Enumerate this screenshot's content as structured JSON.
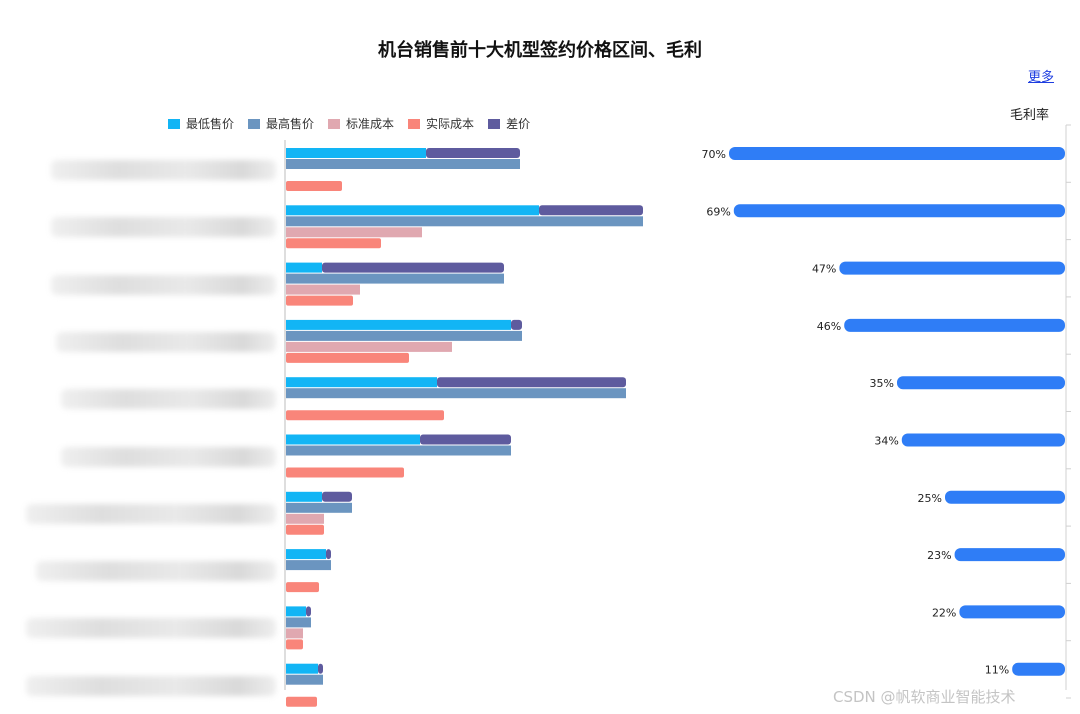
{
  "page": {
    "title": "机台销售前十大机型签约价格区间、毛利",
    "more_link": "更多",
    "watermark": "CSDN @帆软商业智能技术"
  },
  "colors": {
    "min_price": "#12b5f5",
    "max_price": "#6b95c0",
    "standard_cost": "#e0a8b0",
    "actual_cost": "#f9857a",
    "diff": "#5e5b9e",
    "margin_bar": "#2f7df6"
  },
  "chart_data": [
    {
      "type": "bar",
      "orientation": "horizontal",
      "stacked_pair": [
        "最低售价",
        "差价"
      ],
      "legend": [
        "最低售价",
        "最高售价",
        "标准成本",
        "实际成本",
        "差价"
      ],
      "legend_position": "top",
      "category_labels_visible": false,
      "series": [
        {
          "name": "最低售价",
          "values": [
            140,
            253,
            36,
            225,
            151,
            134,
            36,
            40,
            20,
            32
          ]
        },
        {
          "name": "差价",
          "values": [
            94,
            104,
            182,
            11,
            189,
            91,
            30,
            5,
            5,
            5
          ]
        },
        {
          "name": "最高售价",
          "values": [
            234,
            357,
            218,
            236,
            340,
            225,
            66,
            45,
            25,
            37
          ]
        },
        {
          "name": "标准成本",
          "values": [
            0,
            136,
            74,
            166,
            0,
            0,
            38,
            0,
            17,
            0
          ]
        },
        {
          "name": "实际成本",
          "values": [
            56,
            95,
            67,
            123,
            158,
            118,
            38,
            33,
            17,
            31
          ]
        }
      ],
      "xlim": [
        0,
        400
      ]
    },
    {
      "type": "bar",
      "orientation": "horizontal",
      "direction": "right-to-left",
      "title": "毛利率",
      "series": [
        {
          "name": "毛利率",
          "values": [
            70,
            69,
            47,
            46,
            35,
            34,
            25,
            23,
            22,
            11
          ]
        }
      ],
      "value_labels": [
        "70%",
        "69%",
        "47%",
        "46%",
        "35%",
        "34%",
        "25%",
        "23%",
        "22%",
        "11%"
      ],
      "xlim": [
        0,
        100
      ]
    }
  ]
}
